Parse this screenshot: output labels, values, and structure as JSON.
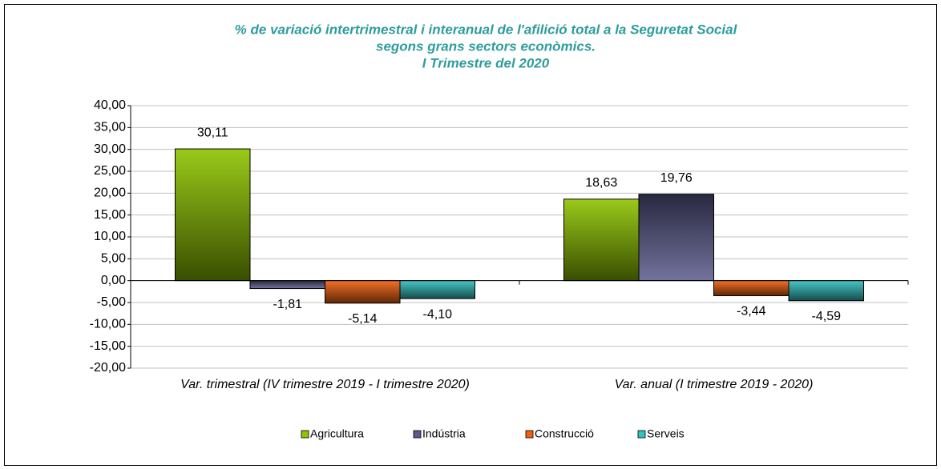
{
  "chart_data": {
    "type": "bar",
    "title": [
      "% de variació intertrimestral i interanual de l'afilició total a la Seguretat Social",
      "segons grans sectors econòmics.",
      "I Trimestre del 2020"
    ],
    "categories": [
      "Var. trimestral (IV trimestre 2019 - I trimestre 2020)",
      "Var. anual (I trimestre 2019 - 2020)"
    ],
    "series": [
      {
        "name": "Agricultura",
        "color": "#8fc400",
        "values": [
          30.11,
          18.63
        ],
        "value_labels": [
          "30,11",
          "18,63"
        ]
      },
      {
        "name": "Indústria",
        "color": "#5a5a8c",
        "values": [
          -1.81,
          19.76
        ],
        "value_labels": [
          "-1,81",
          "19,76"
        ]
      },
      {
        "name": "Construcció",
        "color": "#f06010",
        "values": [
          -5.14,
          -3.44
        ],
        "value_labels": [
          "-5,14",
          "-3,44"
        ]
      },
      {
        "name": "Serveis",
        "color": "#33c0c0",
        "values": [
          -4.1,
          -4.59
        ],
        "value_labels": [
          "-4,10",
          "-4,59"
        ]
      }
    ],
    "ylim": [
      -20,
      40
    ],
    "yticks": [
      {
        "value": -20,
        "label": "-20,00"
      },
      {
        "value": -15,
        "label": "-15,00"
      },
      {
        "value": -10,
        "label": "-10,00"
      },
      {
        "value": -5,
        "label": "-5,00"
      },
      {
        "value": 0,
        "label": "0,00"
      },
      {
        "value": 5,
        "label": "5,00"
      },
      {
        "value": 10,
        "label": "10,00"
      },
      {
        "value": 15,
        "label": "15,00"
      },
      {
        "value": 20,
        "label": "20,00"
      },
      {
        "value": 25,
        "label": "25,00"
      },
      {
        "value": 30,
        "label": "30,00"
      },
      {
        "value": 35,
        "label": "35,00"
      },
      {
        "value": 40,
        "label": "40,00"
      }
    ],
    "grid": true,
    "legend": "bottom"
  }
}
